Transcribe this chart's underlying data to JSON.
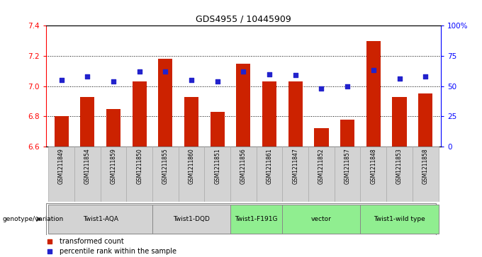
{
  "title": "GDS4955 / 10445909",
  "samples": [
    "GSM1211849",
    "GSM1211854",
    "GSM1211859",
    "GSM1211850",
    "GSM1211855",
    "GSM1211860",
    "GSM1211851",
    "GSM1211856",
    "GSM1211861",
    "GSM1211847",
    "GSM1211852",
    "GSM1211857",
    "GSM1211848",
    "GSM1211853",
    "GSM1211858"
  ],
  "bar_values": [
    6.8,
    6.93,
    6.85,
    7.03,
    7.18,
    6.93,
    6.83,
    7.15,
    7.03,
    7.03,
    6.72,
    6.78,
    7.3,
    6.93,
    6.95
  ],
  "percentile_values": [
    55,
    58,
    54,
    62,
    62,
    55,
    54,
    62,
    60,
    59,
    48,
    50,
    63,
    56,
    58
  ],
  "ymin": 6.6,
  "ymax": 7.4,
  "yticks": [
    6.6,
    6.8,
    7.0,
    7.2,
    7.4
  ],
  "ytick_labels": [
    "6.6",
    "6.8",
    "7.0",
    "7.2",
    "7.4"
  ],
  "right_yticks": [
    0,
    25,
    50,
    75,
    100
  ],
  "right_yticklabels": [
    "0",
    "25",
    "50",
    "75",
    "100%"
  ],
  "bar_color": "#CC2200",
  "percentile_color": "#2222CC",
  "groups": [
    {
      "label": "Twist1-AQA",
      "indices": [
        0,
        1,
        2,
        3
      ],
      "color": "#d3d3d3"
    },
    {
      "label": "Twist1-DQD",
      "indices": [
        4,
        5,
        6
      ],
      "color": "#d3d3d3"
    },
    {
      "label": "Twist1-F191G",
      "indices": [
        7,
        8
      ],
      "color": "#90EE90"
    },
    {
      "label": "vector",
      "indices": [
        9,
        10,
        11
      ],
      "color": "#90EE90"
    },
    {
      "label": "Twist1-wild type",
      "indices": [
        12,
        13,
        14
      ],
      "color": "#90EE90"
    }
  ],
  "genotype_label": "genotype/variation",
  "legend_red": "transformed count",
  "legend_blue": "percentile rank within the sample",
  "grid_yticks": [
    6.8,
    7.0,
    7.2
  ]
}
